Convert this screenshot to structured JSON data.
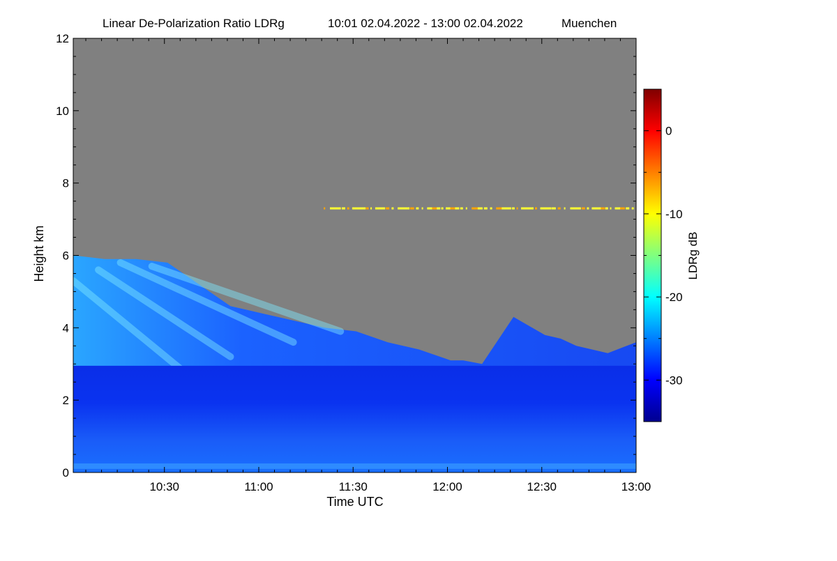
{
  "chart_data": {
    "type": "heatmap",
    "title": "Linear De-Polarization Ratio LDRg",
    "time_range": "10:01 02.04.2022 - 13:00 02.04.2022",
    "location": "Muenchen",
    "xlabel": "Time UTC",
    "ylabel": "Height km",
    "xlim": [
      "10:01",
      "13:00"
    ],
    "ylim": [
      0,
      12
    ],
    "x_ticks": [
      "10:30",
      "11:00",
      "11:30",
      "12:00",
      "12:30",
      "13:00"
    ],
    "y_ticks": [
      "0",
      "2",
      "4",
      "6",
      "8",
      "10",
      "12"
    ],
    "background_color": "#808080",
    "colorbar": {
      "label": "LDRg dB",
      "range": [
        -35,
        5
      ],
      "ticks": [
        "0",
        "-10",
        "-20",
        "-30"
      ],
      "colormap": "jet"
    },
    "cloud_top_profile": {
      "time_min": [
        0,
        10,
        20,
        30,
        40,
        50,
        55,
        60,
        70,
        80,
        90,
        100,
        110,
        120,
        124,
        130,
        140,
        150,
        155,
        160,
        170,
        179
      ],
      "height_km": [
        6.0,
        5.9,
        5.9,
        5.8,
        5.2,
        4.6,
        4.5,
        4.4,
        4.2,
        4.0,
        3.9,
        3.6,
        3.4,
        3.1,
        3.1,
        3.0,
        4.3,
        3.8,
        3.7,
        3.5,
        3.3,
        3.6
      ]
    },
    "boundary_layer": {
      "top_height_km": 2.95,
      "ldr_db": -33
    },
    "cirrus_streak": {
      "height_km": 7.3,
      "time_start": "11:20",
      "time_end": "13:00",
      "ldr_db": -8
    }
  }
}
